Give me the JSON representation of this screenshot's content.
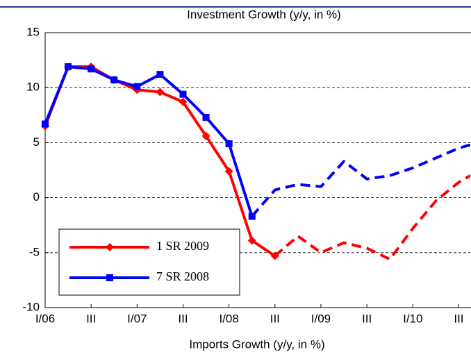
{
  "chart_data": {
    "type": "line",
    "title": "Investment Growth (y/y, in %)",
    "x_label": "Imports Growth (y/y, in %)",
    "x": [
      0,
      1,
      2,
      3,
      4,
      5,
      6,
      7,
      8,
      9,
      10,
      11,
      12,
      13,
      14,
      15,
      16,
      17,
      18,
      18.5
    ],
    "xlim": [
      0,
      18.5
    ],
    "xticks": [
      {
        "value": 0,
        "label": "I/06"
      },
      {
        "value": 2,
        "label": "III"
      },
      {
        "value": 4,
        "label": "I/07"
      },
      {
        "value": 6,
        "label": "III"
      },
      {
        "value": 8,
        "label": "I/08"
      },
      {
        "value": 10,
        "label": "III"
      },
      {
        "value": 12,
        "label": "I/09"
      },
      {
        "value": 14,
        "label": "III"
      },
      {
        "value": 16,
        "label": "I/10"
      },
      {
        "value": 18,
        "label": "III"
      }
    ],
    "ylim": [
      -10,
      15
    ],
    "yticks": [
      -10,
      -5,
      0,
      5,
      10,
      15
    ],
    "grid": true,
    "series": [
      {
        "name": "1 SR 2009",
        "color": "#ff0000",
        "marker": "diamond",
        "values": [
          6.5,
          11.9,
          11.9,
          10.7,
          9.8,
          9.6,
          8.7,
          5.6,
          2.4,
          -3.9,
          -5.3,
          null,
          null,
          null,
          null,
          null,
          null,
          null,
          null,
          null
        ],
        "projection": [
          null,
          null,
          null,
          null,
          null,
          null,
          null,
          null,
          null,
          null,
          -5.3,
          -3.5,
          -5.0,
          -4.1,
          -4.6,
          -5.6,
          -2.8,
          -0.3,
          1.4,
          2.0
        ]
      },
      {
        "name": "7 SR 2008",
        "color": "#0000ff",
        "marker": "square",
        "values": [
          6.7,
          11.9,
          11.7,
          10.7,
          10.1,
          11.2,
          9.4,
          7.3,
          4.9,
          -1.7,
          null,
          null,
          null,
          null,
          null,
          null,
          null,
          null,
          null,
          null
        ],
        "projection": [
          null,
          null,
          null,
          null,
          null,
          null,
          null,
          null,
          null,
          -1.7,
          0.7,
          1.2,
          1.0,
          3.3,
          1.7,
          2.0,
          2.7,
          3.6,
          4.5,
          4.8
        ]
      }
    ]
  }
}
